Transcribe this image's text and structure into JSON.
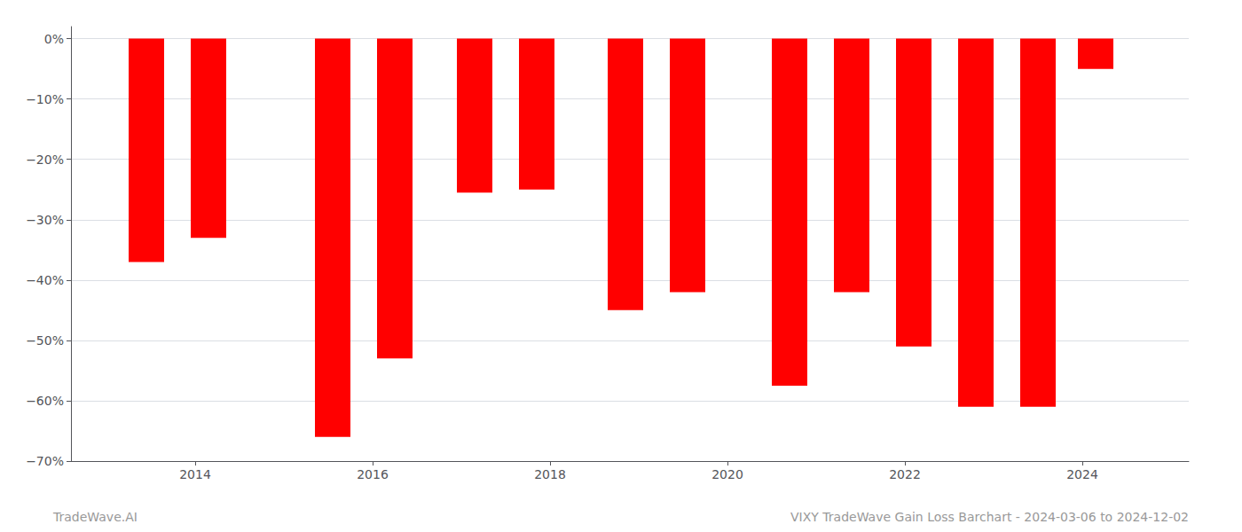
{
  "chart_data": {
    "type": "bar",
    "x": [
      2013.45,
      2014.15,
      2015.55,
      2016.25,
      2017.15,
      2017.85,
      2018.85,
      2019.55,
      2020.7,
      2021.4,
      2022.1,
      2022.8,
      2023.5,
      2024.15
    ],
    "values": [
      -37.0,
      -33.0,
      -66.0,
      -53.0,
      -25.5,
      -25.0,
      -45.0,
      -42.0,
      -57.5,
      -42.0,
      -51.0,
      -61.0,
      -61.0,
      -5.0
    ],
    "color": "#ff0000",
    "xlim": [
      2012.6,
      2025.2
    ],
    "xticks": [
      2014,
      2016,
      2018,
      2020,
      2022,
      2024
    ],
    "ylim": [
      -70,
      2
    ],
    "yticks": [
      {
        "value": 0,
        "label": "0%"
      },
      {
        "value": -10,
        "label": "−10%"
      },
      {
        "value": -20,
        "label": "−20%"
      },
      {
        "value": -30,
        "label": "−30%"
      },
      {
        "value": -40,
        "label": "−40%"
      },
      {
        "value": -50,
        "label": "−50%"
      },
      {
        "value": -60,
        "label": "−60%"
      },
      {
        "value": -70,
        "label": "−70%"
      }
    ],
    "grid": true,
    "annotations": [
      "TradeWave.AI",
      "VIXY TradeWave Gain Loss Barchart - 2024-03-06 to 2024-12-02"
    ]
  }
}
